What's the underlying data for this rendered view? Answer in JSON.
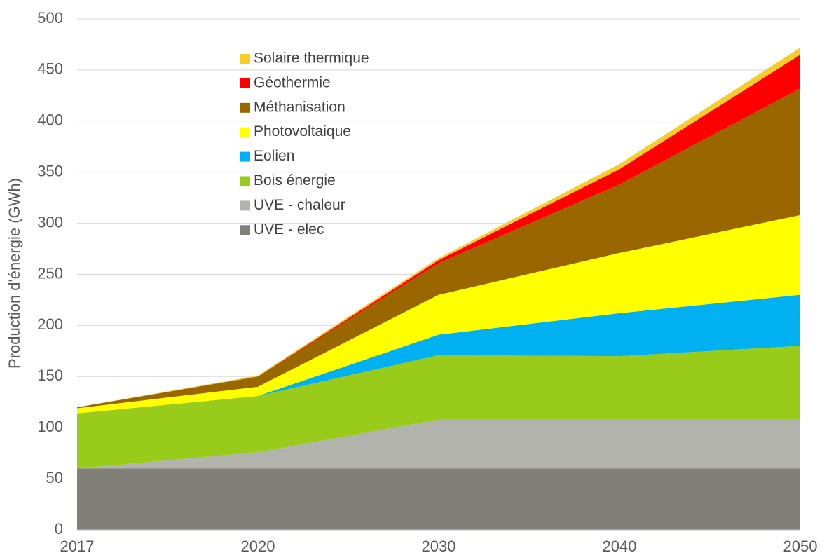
{
  "chart_data": {
    "type": "stacked_area",
    "ylabel": "Production d'énergie (GWh)",
    "categories": [
      "2017",
      "2020",
      "2030",
      "2040",
      "2050"
    ],
    "series": [
      {
        "name": "UVE - elec",
        "color": "#808078",
        "values": [
          60,
          60,
          60,
          60,
          60
        ]
      },
      {
        "name": "UVE - chaleur",
        "color": "#b3b3ae",
        "values": [
          0,
          16,
          48,
          48,
          48
        ]
      },
      {
        "name": "Bois énergie",
        "color": "#99cc1a",
        "values": [
          54,
          55,
          63,
          62,
          72
        ]
      },
      {
        "name": "Eolien",
        "color": "#00b0f0",
        "values": [
          0,
          0,
          20,
          42,
          50
        ]
      },
      {
        "name": "Photovoltaique",
        "color": "#ffff00",
        "values": [
          5,
          9,
          39,
          59,
          78
        ]
      },
      {
        "name": "Méthanisation",
        "color": "#996600",
        "values": [
          1,
          10,
          31,
          67,
          124
        ]
      },
      {
        "name": "Géothermie",
        "color": "#ff0000",
        "values": [
          0,
          0,
          3,
          15,
          33
        ]
      },
      {
        "name": "Solaire thermique",
        "color": "#f8cc2b",
        "values": [
          0,
          1,
          2,
          5,
          7
        ]
      }
    ],
    "ylim": [
      0,
      500
    ],
    "yticks": [
      0,
      50,
      100,
      150,
      200,
      250,
      300,
      350,
      400,
      450,
      500
    ],
    "grid": true,
    "legend": "upper left"
  }
}
